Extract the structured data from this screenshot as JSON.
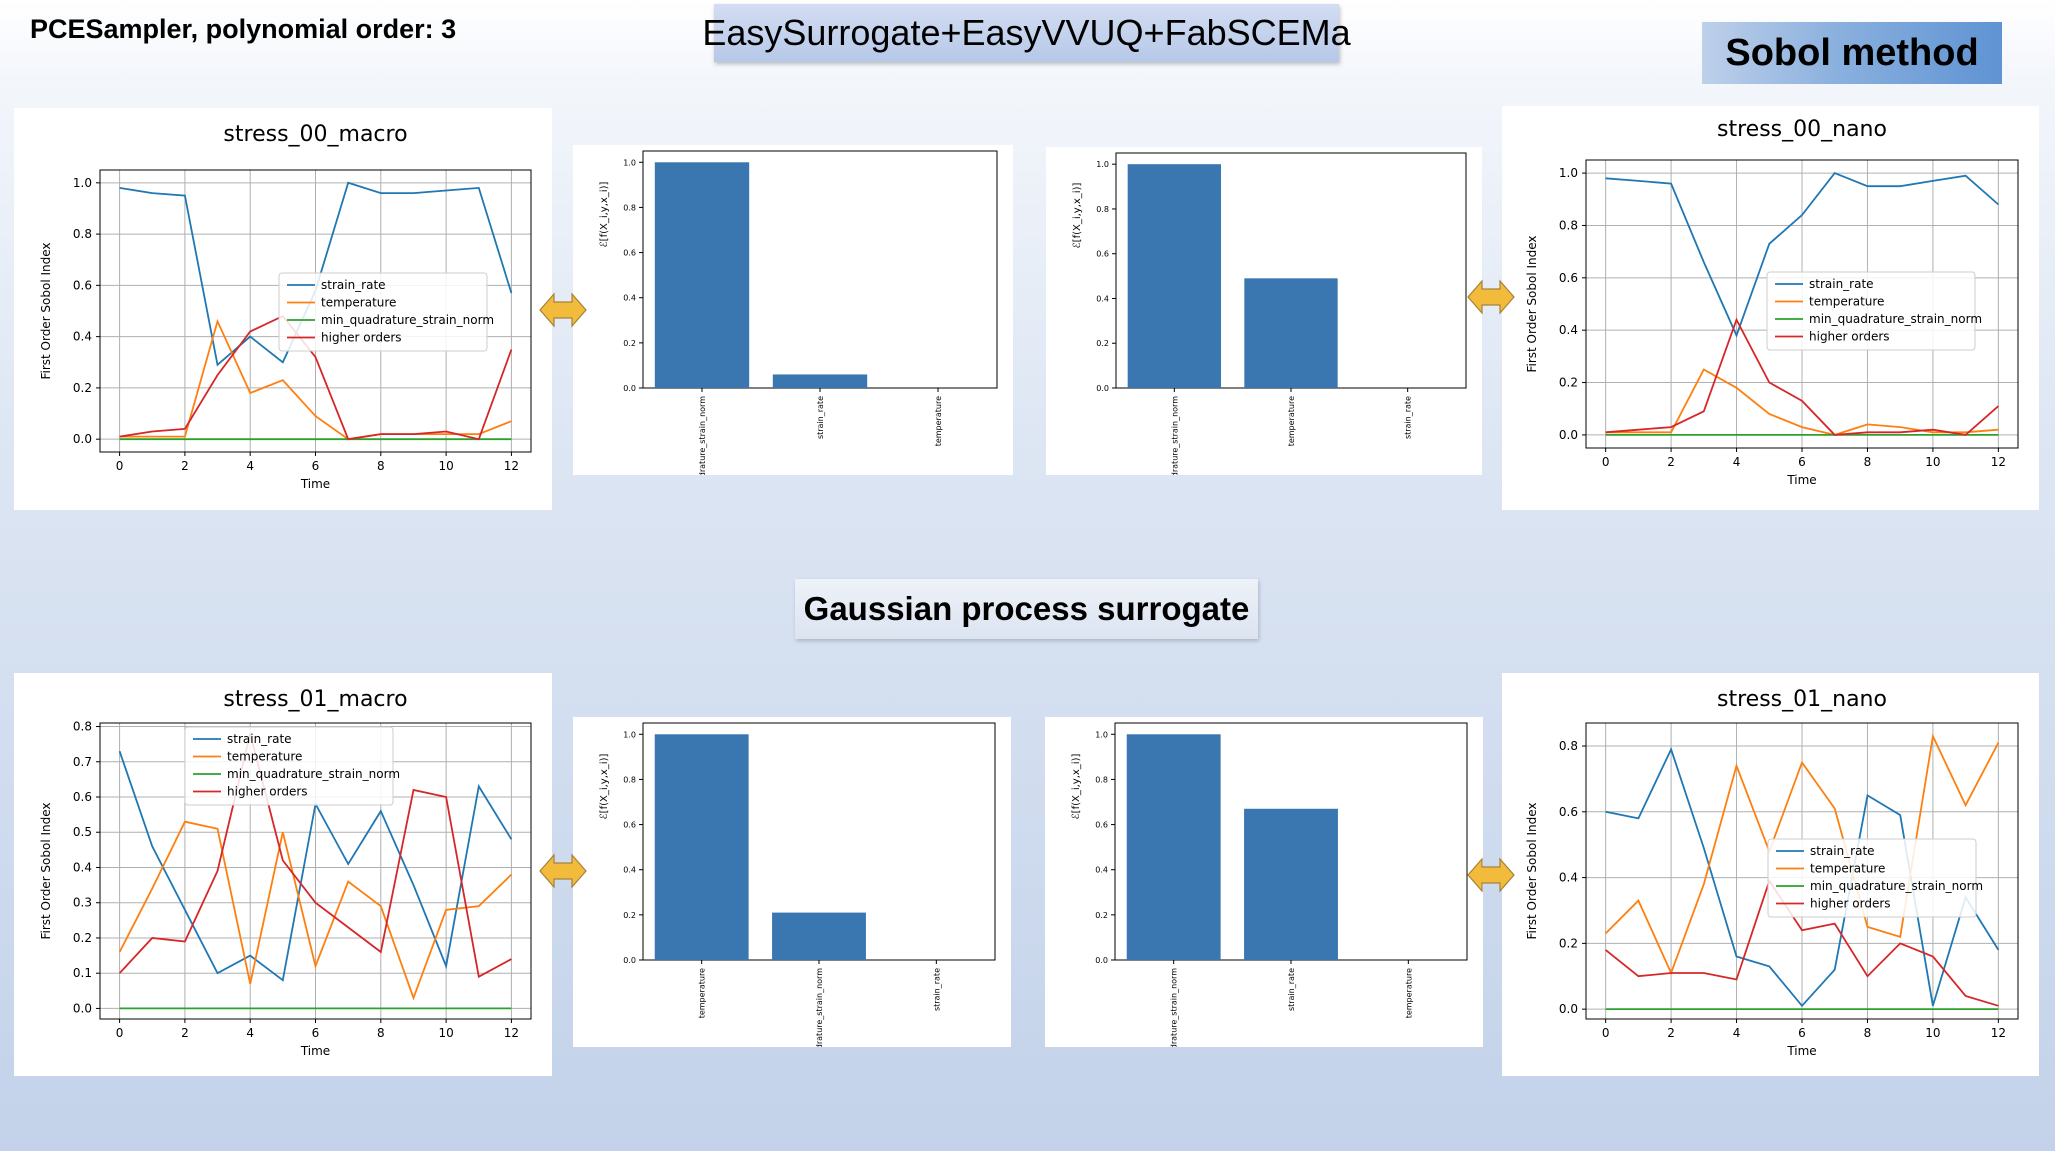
{
  "header": {
    "sampler_label": "PCESampler, polynomial order: 3",
    "banner_title": "EasySurrogate+EasyVVUQ+FabSCEMa",
    "sobol_label": "Sobol method",
    "gp_label": "Gaussian process surrogate"
  },
  "colors": {
    "strain_rate": "#1f77b4",
    "temperature": "#ff7f0e",
    "min_quadrature_strain_norm": "#2ca02c",
    "higher_orders": "#d62728",
    "bar": "#3a76b0",
    "arrow": "#f2bb3c"
  },
  "chart_data": [
    {
      "id": "stress_00_macro",
      "type": "line",
      "title": "stress_00_macro",
      "xlabel": "Time",
      "ylabel": "First Order Sobol Index",
      "xlim": [
        0,
        12
      ],
      "ylim": [
        -0.05,
        1.05
      ],
      "xticks": [
        0,
        2,
        4,
        6,
        8,
        10,
        12
      ],
      "yticks": [
        0.0,
        0.2,
        0.4,
        0.6,
        0.8,
        1.0
      ],
      "grid": true,
      "legend_position": "center-right",
      "x": [
        0,
        1,
        2,
        3,
        4,
        5,
        6,
        7,
        8,
        9,
        10,
        11,
        12
      ],
      "series": [
        {
          "name": "strain_rate",
          "color_key": "strain_rate",
          "values": [
            0.98,
            0.96,
            0.95,
            0.29,
            0.4,
            0.3,
            0.58,
            1.0,
            0.96,
            0.96,
            0.97,
            0.98,
            0.57
          ]
        },
        {
          "name": "temperature",
          "color_key": "temperature",
          "values": [
            0.01,
            0.01,
            0.01,
            0.46,
            0.18,
            0.23,
            0.09,
            0.0,
            0.02,
            0.02,
            0.02,
            0.02,
            0.07
          ]
        },
        {
          "name": "min_quadrature_strain_norm",
          "color_key": "min_quadrature_strain_norm",
          "values": [
            0.0,
            0.0,
            0.0,
            0.0,
            0.0,
            0.0,
            0.0,
            0.0,
            0.0,
            0.0,
            0.0,
            0.0,
            0.0
          ]
        },
        {
          "name": "higher orders",
          "color_key": "higher_orders",
          "values": [
            0.01,
            0.03,
            0.04,
            0.25,
            0.42,
            0.48,
            0.32,
            0.0,
            0.02,
            0.02,
            0.03,
            0.0,
            0.35
          ]
        }
      ]
    },
    {
      "id": "stress_00_nano",
      "type": "line",
      "title": "stress_00_nano",
      "xlabel": "Time",
      "ylabel": "First Order Sobol Index",
      "xlim": [
        0,
        12
      ],
      "ylim": [
        -0.05,
        1.05
      ],
      "xticks": [
        0,
        2,
        4,
        6,
        8,
        10,
        12
      ],
      "yticks": [
        0.0,
        0.2,
        0.4,
        0.6,
        0.8,
        1.0
      ],
      "grid": true,
      "legend_position": "center-right",
      "x": [
        0,
        1,
        2,
        3,
        4,
        5,
        6,
        7,
        8,
        9,
        10,
        11,
        12
      ],
      "series": [
        {
          "name": "strain_rate",
          "color_key": "strain_rate",
          "values": [
            0.98,
            0.97,
            0.96,
            0.66,
            0.38,
            0.73,
            0.84,
            1.0,
            0.95,
            0.95,
            0.97,
            0.99,
            0.88
          ]
        },
        {
          "name": "temperature",
          "color_key": "temperature",
          "values": [
            0.01,
            0.01,
            0.01,
            0.25,
            0.18,
            0.08,
            0.03,
            0.0,
            0.04,
            0.03,
            0.01,
            0.01,
            0.02
          ]
        },
        {
          "name": "min_quadrature_strain_norm",
          "color_key": "min_quadrature_strain_norm",
          "values": [
            0.0,
            0.0,
            0.0,
            0.0,
            0.0,
            0.0,
            0.0,
            0.0,
            0.0,
            0.0,
            0.0,
            0.0,
            0.0
          ]
        },
        {
          "name": "higher orders",
          "color_key": "higher_orders",
          "values": [
            0.01,
            0.02,
            0.03,
            0.09,
            0.44,
            0.2,
            0.13,
            0.0,
            0.01,
            0.01,
            0.02,
            0.0,
            0.11
          ]
        }
      ]
    },
    {
      "id": "stress_01_macro",
      "type": "line",
      "title": "stress_01_macro",
      "xlabel": "Time",
      "ylabel": "First Order Sobol Index",
      "xlim": [
        0,
        12
      ],
      "ylim": [
        -0.03,
        0.81
      ],
      "xticks": [
        0,
        2,
        4,
        6,
        8,
        10,
        12
      ],
      "yticks": [
        0.0,
        0.1,
        0.2,
        0.3,
        0.4,
        0.5,
        0.6,
        0.7,
        0.8
      ],
      "grid": true,
      "legend_position": "upper-center",
      "x": [
        0,
        1,
        2,
        3,
        4,
        5,
        6,
        7,
        8,
        9,
        10,
        11,
        12
      ],
      "series": [
        {
          "name": "strain_rate",
          "color_key": "strain_rate",
          "values": [
            0.73,
            0.46,
            0.28,
            0.1,
            0.15,
            0.08,
            0.58,
            0.41,
            0.56,
            0.35,
            0.12,
            0.63,
            0.48
          ]
        },
        {
          "name": "temperature",
          "color_key": "temperature",
          "values": [
            0.16,
            0.34,
            0.53,
            0.51,
            0.07,
            0.5,
            0.12,
            0.36,
            0.29,
            0.03,
            0.28,
            0.29,
            0.38
          ]
        },
        {
          "name": "min_quadrature_strain_norm",
          "color_key": "min_quadrature_strain_norm",
          "values": [
            0.0,
            0.0,
            0.0,
            0.0,
            0.0,
            0.0,
            0.0,
            0.0,
            0.0,
            0.0,
            0.0,
            0.0,
            0.0
          ]
        },
        {
          "name": "higher orders",
          "color_key": "higher_orders",
          "values": [
            0.1,
            0.2,
            0.19,
            0.39,
            0.78,
            0.42,
            0.3,
            0.23,
            0.16,
            0.62,
            0.6,
            0.09,
            0.14
          ]
        }
      ]
    },
    {
      "id": "stress_01_nano",
      "type": "line",
      "title": "stress_01_nano",
      "xlabel": "Time",
      "ylabel": "First Order Sobol Index",
      "xlim": [
        0,
        12
      ],
      "ylim": [
        -0.03,
        0.87
      ],
      "xticks": [
        0,
        2,
        4,
        6,
        8,
        10,
        12
      ],
      "yticks": [
        0.0,
        0.2,
        0.4,
        0.6,
        0.8
      ],
      "grid": true,
      "legend_position": "center-right",
      "x": [
        0,
        1,
        2,
        3,
        4,
        5,
        6,
        7,
        8,
        9,
        10,
        11,
        12
      ],
      "series": [
        {
          "name": "strain_rate",
          "color_key": "strain_rate",
          "values": [
            0.6,
            0.58,
            0.79,
            0.49,
            0.16,
            0.13,
            0.01,
            0.12,
            0.65,
            0.59,
            0.01,
            0.34,
            0.18
          ]
        },
        {
          "name": "temperature",
          "color_key": "temperature",
          "values": [
            0.23,
            0.33,
            0.11,
            0.38,
            0.74,
            0.48,
            0.75,
            0.61,
            0.25,
            0.22,
            0.83,
            0.62,
            0.81
          ]
        },
        {
          "name": "min_quadrature_strain_norm",
          "color_key": "min_quadrature_strain_norm",
          "values": [
            0.0,
            0.0,
            0.0,
            0.0,
            0.0,
            0.0,
            0.0,
            0.0,
            0.0,
            0.0,
            0.0,
            0.0,
            0.0
          ]
        },
        {
          "name": "higher orders",
          "color_key": "higher_orders",
          "values": [
            0.18,
            0.1,
            0.11,
            0.11,
            0.09,
            0.39,
            0.24,
            0.26,
            0.1,
            0.2,
            0.16,
            0.04,
            0.01
          ]
        }
      ]
    },
    {
      "id": "bar_top_left",
      "type": "bar",
      "ylabel": "ℰ[f(X_i,y,x_i)]",
      "ylim": [
        0,
        1.05
      ],
      "yticks": [
        0.0,
        0.2,
        0.4,
        0.6,
        0.8,
        1.0
      ],
      "categories": [
        "min_quadrature_strain_norm",
        "strain_rate",
        "temperature"
      ],
      "values": [
        1.0,
        0.06,
        0.0
      ]
    },
    {
      "id": "bar_top_right",
      "type": "bar",
      "ylabel": "ℰ[f(X_i,y,x_i)]",
      "ylim": [
        0,
        1.05
      ],
      "yticks": [
        0.0,
        0.2,
        0.4,
        0.6,
        0.8,
        1.0
      ],
      "categories": [
        "min_quadrature_strain_norm",
        "temperature",
        "strain_rate"
      ],
      "values": [
        1.0,
        0.49,
        0.0
      ]
    },
    {
      "id": "bar_bottom_left",
      "type": "bar",
      "ylabel": "ℰ[f(X_i,y,x_i)]",
      "ylim": [
        0,
        1.05
      ],
      "yticks": [
        0.0,
        0.2,
        0.4,
        0.6,
        0.8,
        1.0
      ],
      "categories": [
        "temperature",
        "min_quadrature_strain_norm",
        "strain_rate"
      ],
      "values": [
        1.0,
        0.21,
        0.0
      ]
    },
    {
      "id": "bar_bottom_right",
      "type": "bar",
      "ylabel": "ℰ[f(X_i,y,x_i)]",
      "ylim": [
        0,
        1.05
      ],
      "yticks": [
        0.0,
        0.2,
        0.4,
        0.6,
        0.8,
        1.0
      ],
      "categories": [
        "min_quadrature_strain_norm",
        "strain_rate",
        "temperature"
      ],
      "values": [
        1.0,
        0.67,
        0.0
      ]
    }
  ]
}
